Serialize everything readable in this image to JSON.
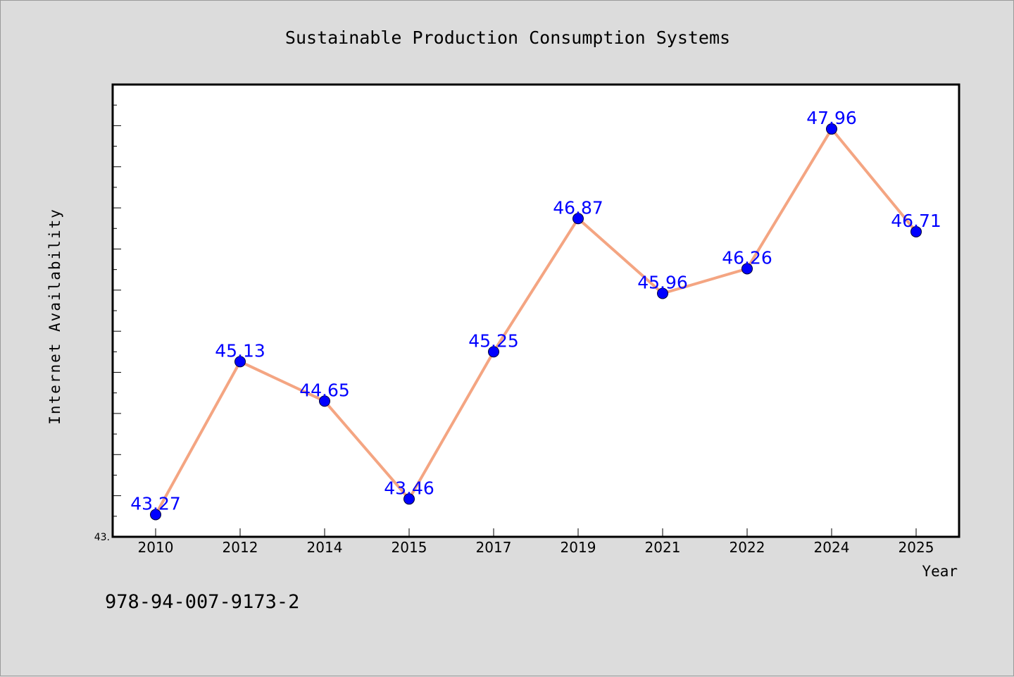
{
  "chart_data": {
    "type": "line",
    "title": "Sustainable Production Consumption Systems",
    "xlabel": "Year",
    "ylabel": "Internet Availability",
    "categories": [
      "2010",
      "2012",
      "2014",
      "2015",
      "2017",
      "2019",
      "2021",
      "2022",
      "2024",
      "2025"
    ],
    "series": [
      {
        "values": [
          43.27,
          45.13,
          44.65,
          43.46,
          45.25,
          46.87,
          45.96,
          46.26,
          47.96,
          46.71
        ],
        "line_color": "#f4a582",
        "marker_color": "#0000ff"
      }
    ],
    "data_labels": [
      "43.27",
      "45.13",
      "44.65",
      "43.46",
      "45.25",
      "46.87",
      "45.96",
      "46.26",
      "47.96",
      "46.71"
    ],
    "y_tick_label": "43.",
    "ylim": [
      43.0,
      48.5
    ],
    "grid": false,
    "legend": "none"
  },
  "footer": {
    "isbn": "978-94-007-9173-2"
  }
}
